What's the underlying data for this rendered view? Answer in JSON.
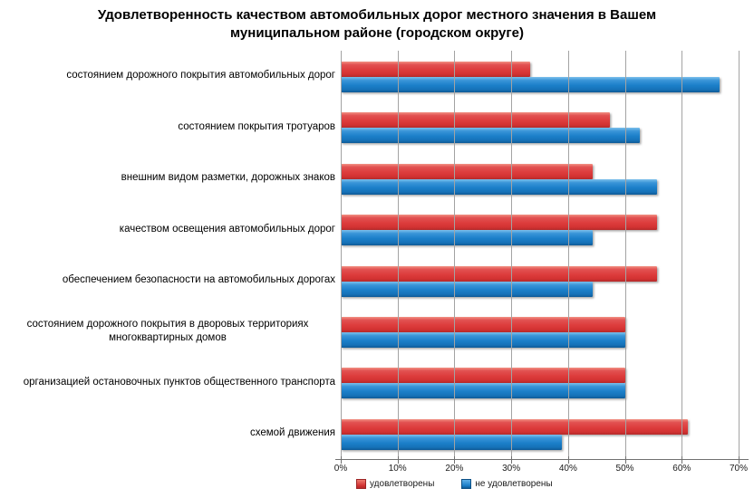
{
  "chart_data": {
    "type": "bar",
    "orientation": "horizontal",
    "title": "Удовлетворенность качеством автомобильных дорог местного значения в Вашем муниципальном районе (городском округе)",
    "categories": [
      "состоянием дорожного покрытия автомобильных дорог",
      "состоянием покрытия тротуаров",
      "внешним видом разметки, дорожных знаков",
      "качеством освещения автомобильных дорог",
      "обеспечением безопасности на автомобильных дорогах",
      "состоянием дорожного покрытия в дворовых территориях многоквартирных домов",
      "организацией остановочных пунктов общественного транспорта",
      "схемой движения"
    ],
    "series": [
      {
        "name": "удовлетворены",
        "color": "#d23232",
        "values": [
          33.3,
          47.4,
          44.4,
          55.6,
          55.6,
          50.0,
          50.0,
          61.1
        ]
      },
      {
        "name": "не удовлетворены",
        "color": "#1b7fc9",
        "values": [
          66.7,
          52.6,
          55.6,
          44.4,
          44.4,
          50.0,
          50.0,
          38.9
        ]
      }
    ],
    "xlim": [
      0,
      70
    ],
    "x_tick_labels": [
      "0%",
      "10%",
      "20%",
      "30%",
      "40%",
      "50%",
      "60%",
      "70%"
    ],
    "grid": true,
    "legend_position": "bottom",
    "colors": {
      "grid": "#a3a3a3",
      "axis": "#707070",
      "title": "#000000"
    }
  }
}
